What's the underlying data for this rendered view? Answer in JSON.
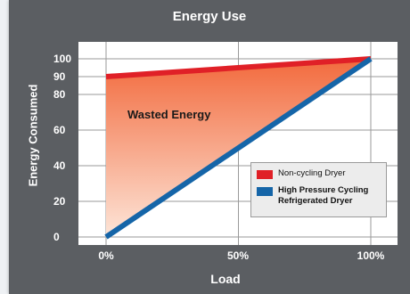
{
  "chart_data": {
    "type": "line",
    "title": "Energy Use",
    "xlabel": "Load",
    "ylabel": "Energy Consumed",
    "x": [
      0,
      100
    ],
    "xticks": [
      "0%",
      "50%",
      "100%"
    ],
    "xlim": [
      0,
      100
    ],
    "yticks": [
      "0",
      "20",
      "40",
      "60",
      "80",
      "90",
      "100"
    ],
    "ylim": [
      0,
      100
    ],
    "grid": true,
    "series": [
      {
        "name": "Non-cycling Dryer",
        "values": [
          90,
          100
        ],
        "color": "#e02027"
      },
      {
        "name": "High Pressure Cycling Refrigerated Dryer",
        "values": [
          0,
          100
        ],
        "color": "#1565a8"
      }
    ],
    "shaded_region": {
      "label": "Wasted Energy",
      "color_top": "#f26a3d",
      "color_bottom": "#fde5d8"
    },
    "legend_position": "bottom-right"
  }
}
